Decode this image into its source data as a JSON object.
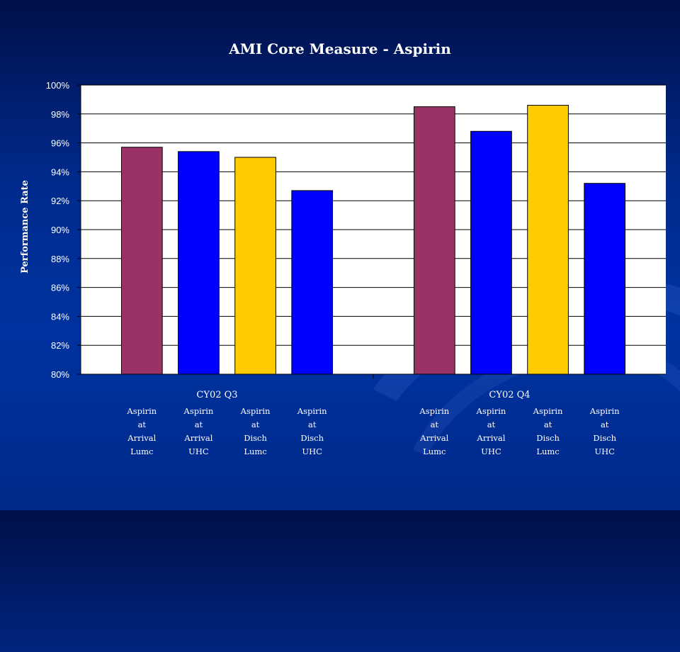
{
  "chart_data": {
    "type": "bar",
    "title": "AMI Core Measure - Aspirin",
    "ylabel": "Performance Rate",
    "xlabel": "",
    "ylim": [
      80,
      100
    ],
    "y_ticks": [
      "80%",
      "82%",
      "84%",
      "86%",
      "88%",
      "90%",
      "92%",
      "94%",
      "96%",
      "98%",
      "100%"
    ],
    "grid": true,
    "groups": [
      {
        "label": "CY02  Q3",
        "bars": [
          {
            "label": [
              "Aspirin",
              "at",
              "Arrival",
              "Lumc"
            ],
            "value": 95.7,
            "color": "#993366"
          },
          {
            "label": [
              "Aspirin",
              "at",
              "Arrival",
              "UHC"
            ],
            "value": 95.4,
            "color": "#0000ff"
          },
          {
            "label": [
              "Aspirin",
              "at",
              "Disch",
              "Lumc"
            ],
            "value": 95.0,
            "color": "#ffcc00"
          },
          {
            "label": [
              "Aspirin",
              "at",
              "Disch",
              "UHC"
            ],
            "value": 92.7,
            "color": "#0000ff"
          }
        ]
      },
      {
        "label": "CY02  Q4",
        "bars": [
          {
            "label": [
              "Aspirin",
              "at",
              "Arrival",
              "Lumc"
            ],
            "value": 98.5,
            "color": "#993366"
          },
          {
            "label": [
              "Aspirin",
              "at",
              "Arrival",
              "UHC"
            ],
            "value": 96.8,
            "color": "#0000ff"
          },
          {
            "label": [
              "Aspirin",
              "at",
              "Disch",
              "Lumc"
            ],
            "value": 98.6,
            "color": "#ffcc00"
          },
          {
            "label": [
              "Aspirin",
              "at",
              "Disch",
              "UHC"
            ],
            "value": 93.2,
            "color": "#0000ff"
          }
        ]
      }
    ]
  }
}
